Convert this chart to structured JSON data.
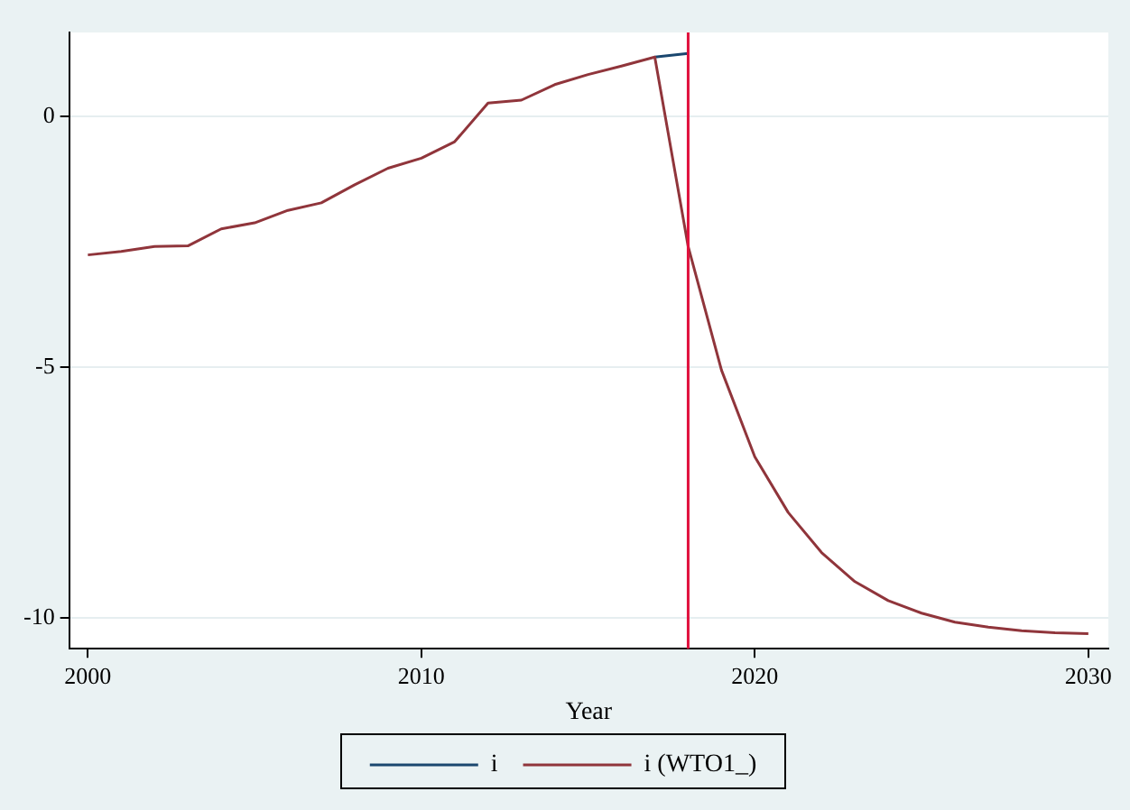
{
  "chart_data": {
    "type": "line",
    "xlabel": "Year",
    "xlim": [
      1999.44,
      2030.6
    ],
    "xticks": [
      2000,
      2010,
      2020,
      2030
    ],
    "ylim": [
      -10.62,
      1.68
    ],
    "yticks": [
      -10,
      -5,
      0
    ],
    "grid": "y",
    "legend": "bottom",
    "marker": "none",
    "line_style": "solid",
    "series": [
      {
        "name": "i",
        "color": "#1a476f",
        "x": [
          2017,
          2018
        ],
        "values": [
          1.19,
          1.26
        ]
      },
      {
        "name": "i (WTO1_)",
        "color": "#90353b",
        "x": [
          2000,
          2001,
          2002,
          2003,
          2004,
          2005,
          2006,
          2007,
          2008,
          2009,
          2010,
          2011,
          2012,
          2013,
          2014,
          2015,
          2016,
          2017,
          2018,
          2019,
          2020,
          2021,
          2022,
          2023,
          2024,
          2025,
          2026,
          2027,
          2028,
          2029,
          2030
        ],
        "values": [
          -2.76,
          -2.69,
          -2.59,
          -2.58,
          -2.24,
          -2.12,
          -1.87,
          -1.72,
          -1.36,
          -1.03,
          -0.83,
          -0.5,
          0.27,
          0.33,
          0.64,
          0.84,
          1.01,
          1.19,
          -2.59,
          -5.06,
          -6.79,
          -7.9,
          -8.7,
          -9.28,
          -9.66,
          -9.91,
          -10.09,
          -10.19,
          -10.26,
          -10.3,
          -10.32
        ]
      }
    ],
    "ref_lines": [
      {
        "axis": "x",
        "value": 2018,
        "color": "#e0103c"
      }
    ]
  }
}
